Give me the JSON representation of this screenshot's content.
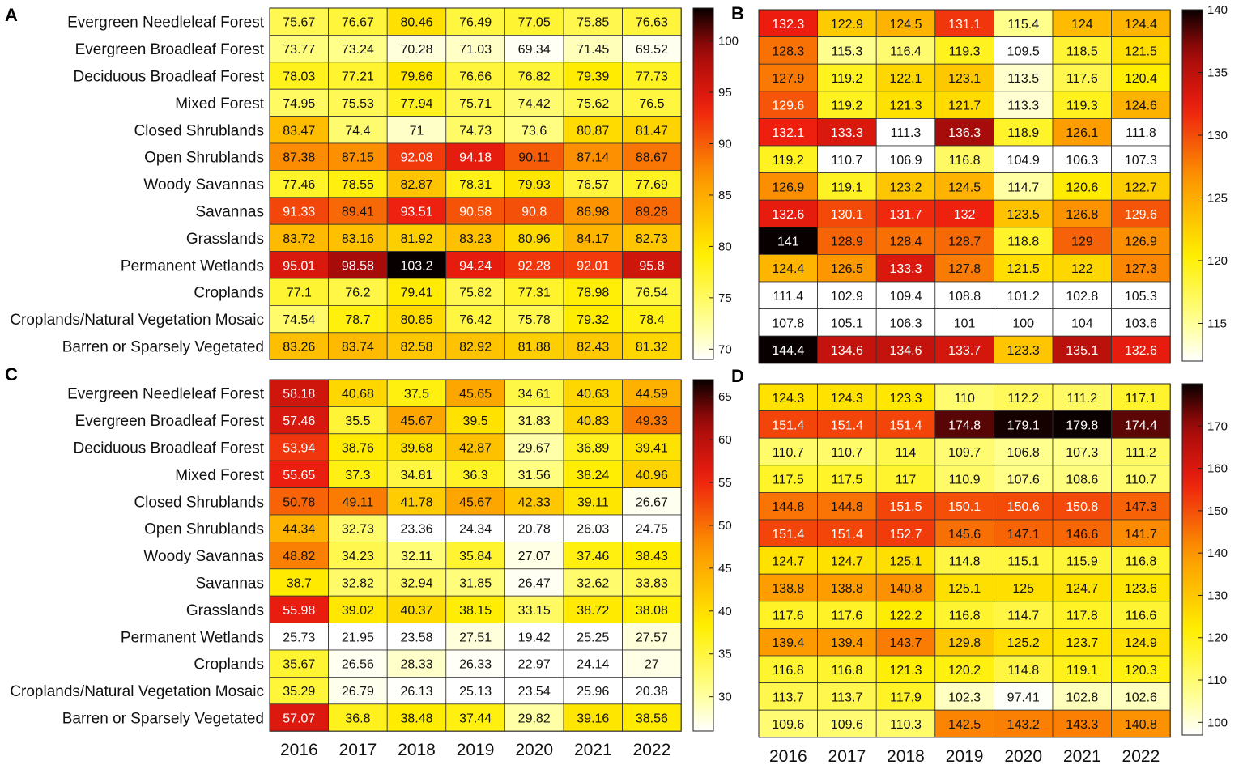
{
  "chart_data": [
    {
      "type": "heatmap",
      "panel": "A",
      "rows": [
        "Evergreen Needleleaf Forest",
        "Evergreen Broadleaf Forest",
        "Deciduous Broadleaf Forest",
        "Mixed Forest",
        "Closed Shrublands",
        "Open Shrublands",
        "Woody Savannas",
        "Savannas",
        "Grasslands",
        "Permanent Wetlands",
        "Croplands",
        "Croplands/Natural Vegetation Mosaic",
        "Barren or Sparsely Vegetated"
      ],
      "columns": [
        "2016",
        "2017",
        "2018",
        "2019",
        "2020",
        "2021",
        "2022"
      ],
      "values": [
        [
          "75.67",
          "76.67",
          "80.46",
          "76.49",
          "77.05",
          "75.85",
          "76.63"
        ],
        [
          "73.77",
          "73.24",
          "70.28",
          "71.03",
          "69.34",
          "71.45",
          "69.52"
        ],
        [
          "78.03",
          "77.21",
          "79.86",
          "76.66",
          "76.82",
          "79.39",
          "77.73"
        ],
        [
          "74.95",
          "75.53",
          "77.94",
          "75.71",
          "74.42",
          "75.62",
          "76.5"
        ],
        [
          "83.47",
          "74.4",
          "71",
          "74.73",
          "73.6",
          "80.87",
          "81.47"
        ],
        [
          "87.38",
          "87.15",
          "92.08",
          "94.18",
          "90.11",
          "87.14",
          "88.67"
        ],
        [
          "77.46",
          "78.55",
          "82.87",
          "78.31",
          "79.93",
          "76.57",
          "77.69"
        ],
        [
          "91.33",
          "89.41",
          "93.51",
          "90.58",
          "90.8",
          "86.98",
          "89.28"
        ],
        [
          "83.72",
          "83.16",
          "81.92",
          "83.23",
          "80.96",
          "84.17",
          "82.73"
        ],
        [
          "95.01",
          "98.58",
          "103.2",
          "94.24",
          "92.28",
          "92.01",
          "95.8"
        ],
        [
          "77.1",
          "76.2",
          "79.41",
          "75.82",
          "77.31",
          "78.98",
          "76.54"
        ],
        [
          "74.54",
          "78.7",
          "80.85",
          "76.42",
          "75.78",
          "79.32",
          "78.4"
        ],
        [
          "83.26",
          "83.74",
          "82.58",
          "82.92",
          "81.88",
          "82.43",
          "81.32"
        ]
      ],
      "colorbar": {
        "range": [
          69,
          103.2
        ],
        "ticks": [
          "70",
          "75",
          "80",
          "85",
          "90",
          "95",
          "100"
        ]
      }
    },
    {
      "type": "heatmap",
      "panel": "B",
      "columns": [
        "2016",
        "2017",
        "2018",
        "2019",
        "2020",
        "2021",
        "2022"
      ],
      "values": [
        [
          "132.3",
          "122.9",
          "124.5",
          "131.1",
          "115.4",
          "124",
          "124.4"
        ],
        [
          "128.3",
          "115.3",
          "116.4",
          "119.3",
          "109.5",
          "118.5",
          "121.5"
        ],
        [
          "127.9",
          "119.2",
          "122.1",
          "123.1",
          "113.5",
          "117.6",
          "120.4"
        ],
        [
          "129.6",
          "119.2",
          "121.3",
          "121.7",
          "113.3",
          "119.3",
          "124.6"
        ],
        [
          "132.1",
          "133.3",
          "111.3",
          "136.3",
          "118.9",
          "126.1",
          "111.8"
        ],
        [
          "119.2",
          "110.7",
          "106.9",
          "116.8",
          "104.9",
          "106.3",
          "107.3"
        ],
        [
          "126.9",
          "119.1",
          "123.2",
          "124.5",
          "114.7",
          "120.6",
          "122.7"
        ],
        [
          "132.6",
          "130.1",
          "131.7",
          "132",
          "123.5",
          "126.8",
          "129.6"
        ],
        [
          "141",
          "128.9",
          "128.4",
          "128.7",
          "118.8",
          "129",
          "126.9"
        ],
        [
          "124.4",
          "126.5",
          "133.3",
          "127.8",
          "121.5",
          "122",
          "127.3"
        ],
        [
          "111.4",
          "102.9",
          "109.4",
          "108.8",
          "101.2",
          "102.8",
          "105.3"
        ],
        [
          "107.8",
          "105.1",
          "106.3",
          "101",
          "100",
          "104",
          "103.6"
        ],
        [
          "144.4",
          "134.6",
          "134.6",
          "133.7",
          "123.3",
          "135.1",
          "132.6"
        ]
      ],
      "colorbar": {
        "range": [
          112,
          140
        ],
        "ticks": [
          "115",
          "120",
          "125",
          "130",
          "135",
          "140"
        ]
      }
    },
    {
      "type": "heatmap",
      "panel": "C",
      "rows": [
        "Evergreen Needleleaf Forest",
        "Evergreen Broadleaf Forest",
        "Deciduous Broadleaf Forest",
        "Mixed Forest",
        "Closed Shrublands",
        "Open Shrublands",
        "Woody Savannas",
        "Savannas",
        "Grasslands",
        "Permanent Wetlands",
        "Croplands",
        "Croplands/Natural Vegetation Mosaic",
        "Barren or Sparsely Vegetated"
      ],
      "columns": [
        "2016",
        "2017",
        "2018",
        "2019",
        "2020",
        "2021",
        "2022"
      ],
      "values": [
        [
          "58.18",
          "40.68",
          "37.5",
          "45.65",
          "34.61",
          "40.63",
          "44.59"
        ],
        [
          "57.46",
          "35.5",
          "45.67",
          "39.5",
          "31.83",
          "40.83",
          "49.33"
        ],
        [
          "53.94",
          "38.76",
          "39.68",
          "42.87",
          "29.67",
          "36.89",
          "39.41"
        ],
        [
          "55.65",
          "37.3",
          "34.81",
          "36.3",
          "31.56",
          "38.24",
          "40.96"
        ],
        [
          "50.78",
          "49.11",
          "41.78",
          "45.67",
          "42.33",
          "39.11",
          "26.67"
        ],
        [
          "44.34",
          "32.73",
          "23.36",
          "24.34",
          "20.78",
          "26.03",
          "24.75"
        ],
        [
          "48.82",
          "34.23",
          "32.11",
          "35.84",
          "27.07",
          "37.46",
          "38.43"
        ],
        [
          "38.7",
          "32.82",
          "32.94",
          "31.85",
          "26.47",
          "32.62",
          "33.83"
        ],
        [
          "55.98",
          "39.02",
          "40.37",
          "38.15",
          "33.15",
          "38.72",
          "38.08"
        ],
        [
          "25.73",
          "21.95",
          "23.58",
          "27.51",
          "19.42",
          "25.25",
          "27.57"
        ],
        [
          "35.67",
          "26.56",
          "28.33",
          "26.33",
          "22.97",
          "24.14",
          "27"
        ],
        [
          "35.29",
          "26.79",
          "26.13",
          "25.13",
          "23.54",
          "25.96",
          "20.38"
        ],
        [
          "57.07",
          "36.8",
          "38.48",
          "37.44",
          "29.82",
          "39.16",
          "38.56"
        ]
      ],
      "colorbar": {
        "range": [
          26,
          67
        ],
        "ticks": [
          "30",
          "35",
          "40",
          "45",
          "50",
          "55",
          "60",
          "65"
        ]
      }
    },
    {
      "type": "heatmap",
      "panel": "D",
      "columns": [
        "2016",
        "2017",
        "2018",
        "2019",
        "2020",
        "2021",
        "2022"
      ],
      "values": [
        [
          "124.3",
          "124.3",
          "123.3",
          "110",
          "112.2",
          "111.2",
          "117.1"
        ],
        [
          "151.4",
          "151.4",
          "151.4",
          "174.8",
          "179.1",
          "179.8",
          "174.4"
        ],
        [
          "110.7",
          "110.7",
          "114",
          "109.7",
          "106.8",
          "107.3",
          "111.2"
        ],
        [
          "117.5",
          "117.5",
          "117",
          "110.9",
          "107.6",
          "108.6",
          "110.7"
        ],
        [
          "144.8",
          "144.8",
          "151.5",
          "150.1",
          "150.6",
          "150.8",
          "147.3"
        ],
        [
          "151.4",
          "151.4",
          "152.7",
          "145.6",
          "147.1",
          "146.6",
          "141.7"
        ],
        [
          "124.7",
          "124.7",
          "125.1",
          "114.8",
          "115.1",
          "115.9",
          "116.8"
        ],
        [
          "138.8",
          "138.8",
          "140.8",
          "125.1",
          "125",
          "124.7",
          "123.6"
        ],
        [
          "117.6",
          "117.6",
          "122.2",
          "116.8",
          "114.7",
          "117.8",
          "116.6"
        ],
        [
          "139.4",
          "139.4",
          "143.7",
          "129.8",
          "125.2",
          "123.7",
          "124.9"
        ],
        [
          "116.8",
          "116.8",
          "121.3",
          "120.2",
          "114.8",
          "119.1",
          "120.3"
        ],
        [
          "113.7",
          "113.7",
          "117.9",
          "102.3",
          "97.41",
          "102.8",
          "102.6"
        ],
        [
          "109.6",
          "109.6",
          "110.3",
          "142.5",
          "143.2",
          "143.3",
          "140.8"
        ]
      ],
      "colorbar": {
        "range": [
          97,
          180
        ],
        "ticks": [
          "100",
          "110",
          "120",
          "130",
          "140",
          "150",
          "160",
          "170"
        ]
      }
    }
  ]
}
